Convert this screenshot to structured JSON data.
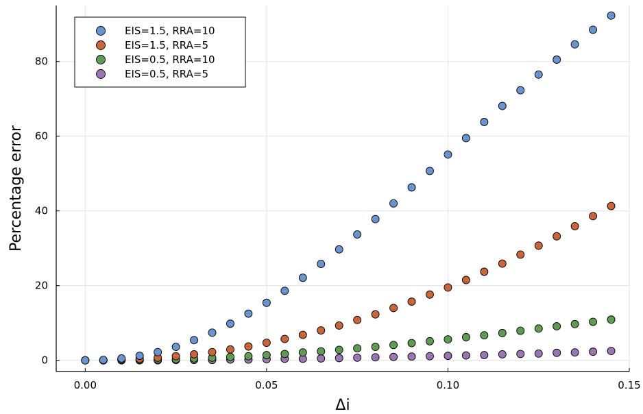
{
  "chart_data": {
    "type": "scatter",
    "xlabel": "Δi",
    "ylabel": "Percentage error",
    "xlim": [
      -0.008,
      0.15
    ],
    "ylim": [
      -3,
      95
    ],
    "xticks": [
      0.0,
      0.05,
      0.1,
      0.15
    ],
    "xtick_labels": [
      "0.00",
      "0.05",
      "0.10",
      "0.15"
    ],
    "yticks": [
      0,
      20,
      40,
      60,
      80
    ],
    "ytick_labels": [
      "0",
      "20",
      "40",
      "60",
      "80"
    ],
    "grid": true,
    "legend_position": "top-left",
    "x": [
      0.0,
      0.005,
      0.01,
      0.015,
      0.02,
      0.025,
      0.03,
      0.035,
      0.04,
      0.045,
      0.05,
      0.055,
      0.06,
      0.065,
      0.07,
      0.075,
      0.08,
      0.085,
      0.09,
      0.095,
      0.1,
      0.105,
      0.11,
      0.115,
      0.12,
      0.125,
      0.13,
      0.135,
      0.14,
      0.145
    ],
    "series": [
      {
        "name": "EIS=1.5, RRA=10",
        "color": "#6b93d0",
        "values": [
          0.0,
          0.1,
          0.5,
          1.2,
          2.2,
          3.6,
          5.4,
          7.4,
          9.8,
          12.5,
          15.4,
          18.6,
          22.1,
          25.8,
          29.7,
          33.7,
          37.8,
          42.0,
          46.3,
          50.7,
          55.1,
          59.5,
          63.8,
          68.1,
          72.3,
          76.5,
          80.5,
          84.6,
          88.5,
          92.3
        ]
      },
      {
        "name": "EIS=1.5, RRA=5",
        "color": "#c8653a",
        "values": [
          0.0,
          0.0,
          0.2,
          0.4,
          0.7,
          1.1,
          1.6,
          2.2,
          2.9,
          3.7,
          4.7,
          5.7,
          6.8,
          8.0,
          9.3,
          10.8,
          12.3,
          14.0,
          15.7,
          17.6,
          19.5,
          21.5,
          23.7,
          25.9,
          28.3,
          30.7,
          33.2,
          35.9,
          38.6,
          41.3
        ]
      },
      {
        "name": "EIS=0.5, RRA=10",
        "color": "#5f9b52",
        "values": [
          0.0,
          0.0,
          0.1,
          0.1,
          0.2,
          0.3,
          0.5,
          0.7,
          0.9,
          1.1,
          1.4,
          1.7,
          2.1,
          2.4,
          2.8,
          3.2,
          3.6,
          4.1,
          4.6,
          5.1,
          5.6,
          6.2,
          6.7,
          7.3,
          7.9,
          8.5,
          9.1,
          9.7,
          10.3,
          10.9
        ]
      },
      {
        "name": "EIS=0.5, RRA=5",
        "color": "#9a76b3",
        "values": [
          0.0,
          0.0,
          0.0,
          0.0,
          0.0,
          0.1,
          0.1,
          0.1,
          0.2,
          0.2,
          0.3,
          0.4,
          0.4,
          0.5,
          0.6,
          0.7,
          0.8,
          0.9,
          1.0,
          1.1,
          1.2,
          1.3,
          1.4,
          1.6,
          1.7,
          1.8,
          2.0,
          2.1,
          2.3,
          2.5
        ]
      }
    ]
  }
}
